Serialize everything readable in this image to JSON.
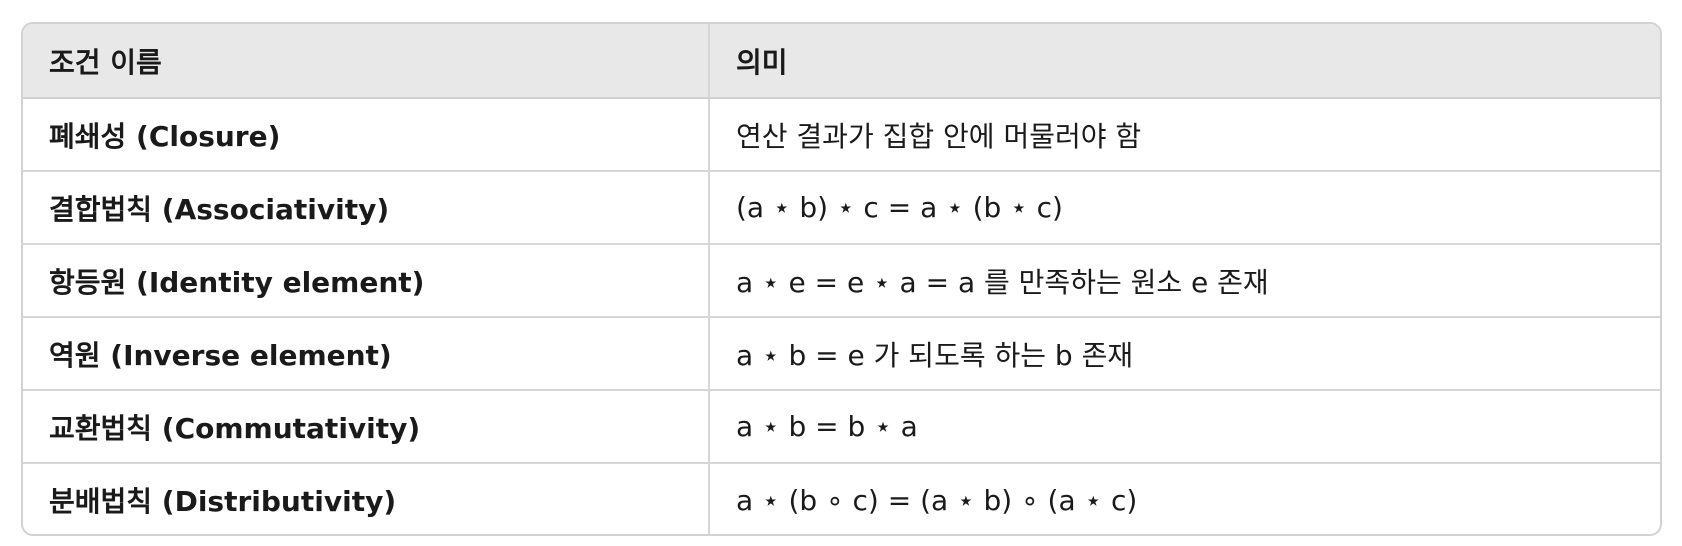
{
  "table": {
    "headers": {
      "name": "조건 이름",
      "meaning": "의미"
    },
    "rows": [
      {
        "name": "폐쇄성 (Closure)",
        "meaning": "연산 결과가 집합 안에 머물러야 함"
      },
      {
        "name": "결합법칙 (Associativity)",
        "meaning": "(a ⋆ b) ⋆ c = a ⋆ (b ⋆ c)"
      },
      {
        "name": "항등원 (Identity element)",
        "meaning": "a ⋆ e = e ⋆ a = a 를 만족하는 원소 e 존재"
      },
      {
        "name": "역원 (Inverse element)",
        "meaning": "a ⋆ b = e 가 되도록 하는 b 존재"
      },
      {
        "name": "교환법칙 (Commutativity)",
        "meaning": "a ⋆ b = b ⋆ a"
      },
      {
        "name": "분배법칙 (Distributivity)",
        "meaning": "a ⋆ (b ∘ c) = (a ⋆ b) ∘ (a ⋆ c)"
      }
    ]
  }
}
